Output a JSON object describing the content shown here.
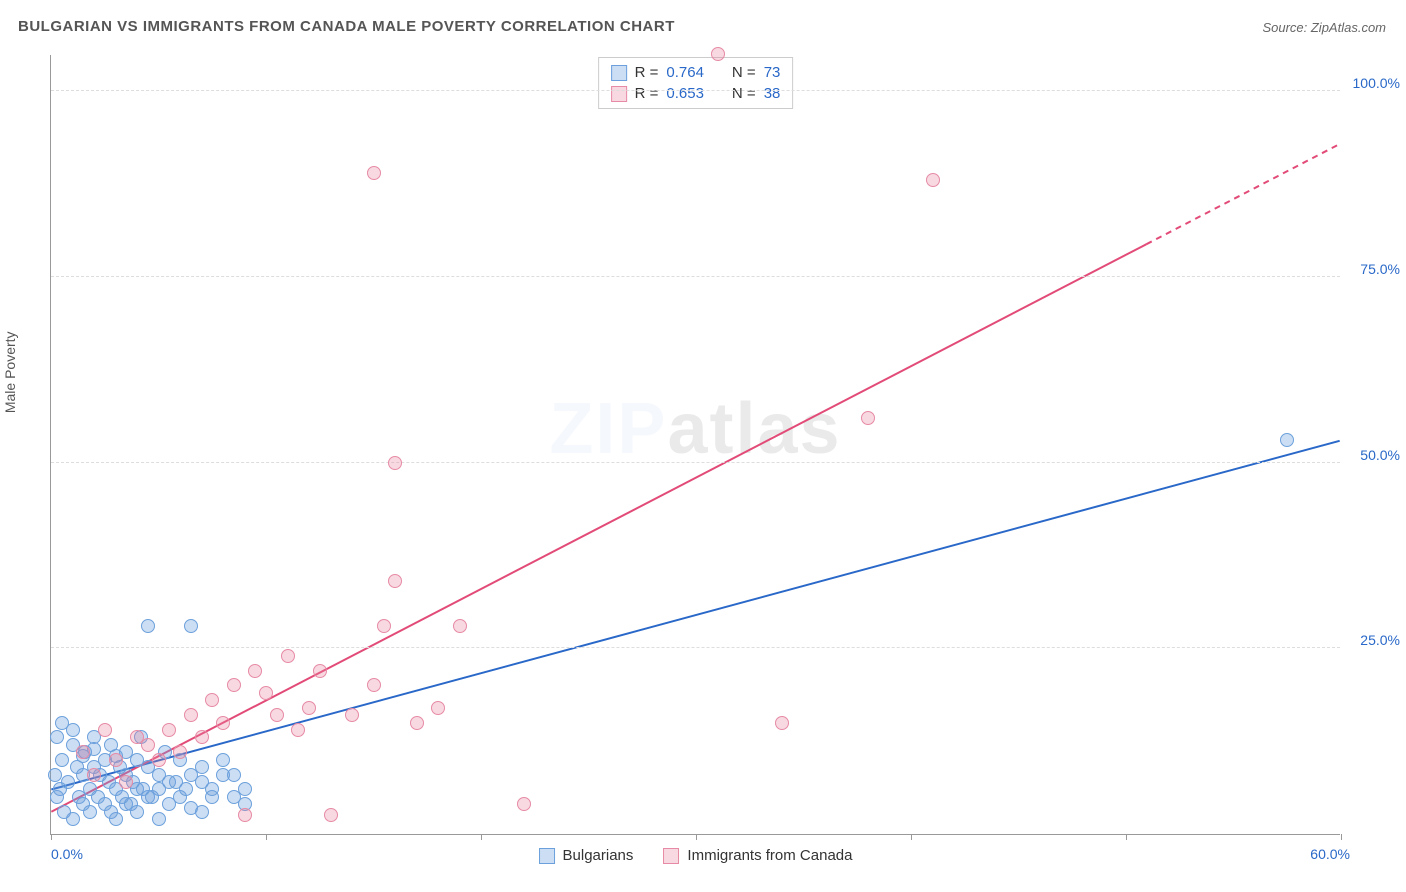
{
  "title": "BULGARIAN VS IMMIGRANTS FROM CANADA MALE POVERTY CORRELATION CHART",
  "source": "Source: ZipAtlas.com",
  "ylabel": "Male Poverty",
  "watermark_a": "ZIP",
  "watermark_b": "atlas",
  "chart": {
    "type": "scatter",
    "xlim": [
      0,
      60
    ],
    "ylim": [
      0,
      105
    ],
    "x_min_label": "0.0%",
    "x_max_label": "60.0%",
    "y_ticks": [
      25,
      50,
      75,
      100
    ],
    "y_tick_labels": [
      "25.0%",
      "50.0%",
      "75.0%",
      "100.0%"
    ],
    "x_tick_positions": [
      0,
      10,
      20,
      30,
      40,
      50,
      60
    ],
    "grid_color": "#dddddd",
    "background_color": "#ffffff",
    "axis_color": "#999999",
    "tick_label_color": "#2968c8"
  },
  "series": [
    {
      "name": "Bulgarians",
      "fill": "rgba(108,160,220,0.35)",
      "stroke": "#6ca0dc",
      "line_color": "#2968c8",
      "line_width": 2,
      "r_label": "R =",
      "r_value": "0.764",
      "n_label": "N =",
      "n_value": "73",
      "trend": {
        "x1": 0,
        "y1": 6,
        "x2": 60,
        "y2": 53,
        "dash_from_x": 60
      },
      "points": [
        [
          0.3,
          5
        ],
        [
          0.5,
          10
        ],
        [
          0.6,
          3
        ],
        [
          0.8,
          7
        ],
        [
          1,
          12
        ],
        [
          1,
          2
        ],
        [
          1.2,
          9
        ],
        [
          1.3,
          5
        ],
        [
          1.5,
          8
        ],
        [
          1.5,
          4
        ],
        [
          1.6,
          11
        ],
        [
          1.8,
          6
        ],
        [
          1.8,
          3
        ],
        [
          2,
          9
        ],
        [
          2,
          13
        ],
        [
          2.2,
          5
        ],
        [
          2.3,
          8
        ],
        [
          2.5,
          10
        ],
        [
          2.5,
          4
        ],
        [
          2.7,
          7
        ],
        [
          2.8,
          12
        ],
        [
          3,
          6
        ],
        [
          3,
          2
        ],
        [
          3.2,
          9
        ],
        [
          3.3,
          5
        ],
        [
          3.5,
          8
        ],
        [
          3.5,
          11
        ],
        [
          3.7,
          4
        ],
        [
          3.8,
          7
        ],
        [
          4,
          10
        ],
        [
          4,
          3
        ],
        [
          4.2,
          13
        ],
        [
          4.3,
          6
        ],
        [
          4.5,
          9
        ],
        [
          4.7,
          5
        ],
        [
          5,
          8
        ],
        [
          5,
          2
        ],
        [
          5.3,
          11
        ],
        [
          5.5,
          4
        ],
        [
          5.8,
          7
        ],
        [
          6,
          10
        ],
        [
          6.3,
          6
        ],
        [
          6.5,
          3.5
        ],
        [
          7,
          9
        ],
        [
          7,
          3
        ],
        [
          7.5,
          6
        ],
        [
          8,
          8
        ],
        [
          8.5,
          5
        ],
        [
          9,
          4
        ],
        [
          4.5,
          28
        ],
        [
          6.5,
          28
        ],
        [
          0.5,
          15
        ],
        [
          1,
          14
        ],
        [
          0.3,
          13
        ],
        [
          2,
          11.5
        ],
        [
          1.5,
          10.5
        ],
        [
          3,
          10.5
        ],
        [
          2.8,
          3
        ],
        [
          3.5,
          4
        ],
        [
          4,
          6
        ],
        [
          4.5,
          5
        ],
        [
          5,
          6
        ],
        [
          5.5,
          7
        ],
        [
          6,
          5
        ],
        [
          6.5,
          8
        ],
        [
          7,
          7
        ],
        [
          7.5,
          5
        ],
        [
          8,
          10
        ],
        [
          8.5,
          8
        ],
        [
          9,
          6
        ],
        [
          0.2,
          8
        ],
        [
          0.4,
          6
        ],
        [
          57.5,
          53
        ]
      ]
    },
    {
      "name": "Immigrants from Canada",
      "fill": "rgba(231,130,160,0.30)",
      "stroke": "#e78aa5",
      "line_color": "#e24b78",
      "line_width": 2,
      "r_label": "R =",
      "r_value": "0.653",
      "n_label": "N =",
      "n_value": "38",
      "trend": {
        "x1": 0,
        "y1": 3,
        "x2": 60,
        "y2": 93,
        "dash_from_x": 51
      },
      "points": [
        [
          1.5,
          11
        ],
        [
          2,
          8
        ],
        [
          2.5,
          14
        ],
        [
          3,
          10
        ],
        [
          3.5,
          7
        ],
        [
          4,
          13
        ],
        [
          4.5,
          12
        ],
        [
          5,
          10
        ],
        [
          5.5,
          14
        ],
        [
          6,
          11
        ],
        [
          6.5,
          16
        ],
        [
          7,
          13
        ],
        [
          7.5,
          18
        ],
        [
          8,
          15
        ],
        [
          8.5,
          20
        ],
        [
          9,
          2.5
        ],
        [
          9.5,
          22
        ],
        [
          10,
          19
        ],
        [
          10.5,
          16
        ],
        [
          11,
          24
        ],
        [
          11.5,
          14
        ],
        [
          12,
          17
        ],
        [
          12.5,
          22
        ],
        [
          13,
          2.5
        ],
        [
          14,
          16
        ],
        [
          15,
          20
        ],
        [
          15.5,
          28
        ],
        [
          16,
          34
        ],
        [
          17,
          15
        ],
        [
          18,
          17
        ],
        [
          19,
          28
        ],
        [
          22,
          4
        ],
        [
          15,
          89
        ],
        [
          16,
          50
        ],
        [
          31,
          105
        ],
        [
          34,
          15
        ],
        [
          38,
          56
        ],
        [
          41,
          88
        ]
      ]
    }
  ],
  "legend_bottom": [
    {
      "label": "Bulgarians",
      "fill": "rgba(108,160,220,0.35)",
      "stroke": "#6ca0dc"
    },
    {
      "label": "Immigrants from Canada",
      "fill": "rgba(231,130,160,0.30)",
      "stroke": "#e78aa5"
    }
  ]
}
